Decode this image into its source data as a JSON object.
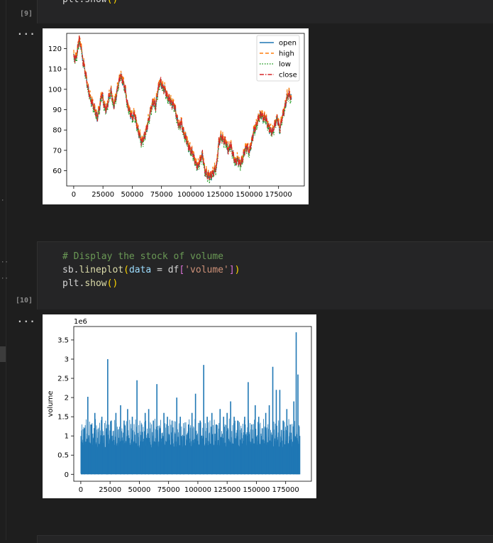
{
  "cells": [
    {
      "execution_count": "[9]",
      "code_lines": [
        [
          {
            "t": "plt.show",
            "c": "c-plain"
          },
          {
            "t": "()",
            "c": "c-paren"
          }
        ]
      ]
    },
    {
      "execution_count": "[10]",
      "code_lines": [
        [
          {
            "t": "# Display the stock of volume",
            "c": "c-comment"
          }
        ],
        [
          {
            "t": "sb.",
            "c": "c-plain"
          },
          {
            "t": "lineplot",
            "c": "c-func"
          },
          {
            "t": "(",
            "c": "c-paren"
          },
          {
            "t": "data",
            "c": "c-param"
          },
          {
            "t": " = df",
            "c": "c-plain"
          },
          {
            "t": "[",
            "c": "c-bracket"
          },
          {
            "t": "'volume'",
            "c": "c-string"
          },
          {
            "t": "]",
            "c": "c-bracket"
          },
          {
            "t": ")",
            "c": "c-paren"
          }
        ],
        [
          {
            "t": "plt.",
            "c": "c-plain"
          },
          {
            "t": "show",
            "c": "c-func"
          },
          {
            "t": "()",
            "c": "c-paren"
          }
        ]
      ]
    }
  ],
  "output_menu_label": "...",
  "chart_data": [
    {
      "type": "line",
      "x_ticks": [
        0,
        25000,
        50000,
        75000,
        100000,
        125000,
        150000,
        175000
      ],
      "y_ticks": [
        60,
        70,
        80,
        90,
        100,
        110,
        120
      ],
      "xlim": [
        -6000,
        197000
      ],
      "ylim": [
        52.5,
        127.5
      ],
      "x": [
        0,
        2000,
        4000,
        5000,
        8000,
        10000,
        12000,
        14000,
        16000,
        18000,
        20000,
        22000,
        24000,
        26000,
        28000,
        30000,
        32000,
        34000,
        36000,
        38000,
        40000,
        42000,
        44000,
        46000,
        48000,
        50000,
        52000,
        54000,
        56000,
        58000,
        60000,
        62000,
        64000,
        66000,
        68000,
        70000,
        72000,
        74000,
        76000,
        78000,
        80000,
        82000,
        84000,
        86000,
        88000,
        90000,
        92000,
        94000,
        96000,
        98000,
        100000,
        102000,
        104000,
        106000,
        108000,
        110000,
        112000,
        114000,
        116000,
        118000,
        120000,
        122000,
        124000,
        126000,
        128000,
        130000,
        132000,
        134000,
        136000,
        138000,
        140000,
        142000,
        144000,
        146000,
        148000,
        150000,
        152000,
        154000,
        156000,
        158000,
        160000,
        162000,
        164000,
        166000,
        168000,
        170000,
        172000,
        174000,
        176000,
        178000,
        180000,
        182000,
        184000,
        186000
      ],
      "series": [
        {
          "name": "open",
          "color": "#1f77b4",
          "values": [
            116,
            115,
            122,
            125,
            114,
            108,
            101,
            96,
            93,
            90,
            86,
            91,
            98,
            92,
            90,
            96,
            99,
            92,
            96,
            102,
            107,
            104,
            100,
            92,
            89,
            86,
            88,
            82,
            78,
            74,
            76,
            80,
            85,
            90,
            94,
            92,
            100,
            104,
            101,
            100,
            96,
            95,
            93,
            92,
            86,
            82,
            84,
            78,
            76,
            72,
            70,
            68,
            64,
            62,
            65,
            68,
            60,
            58,
            57,
            58,
            60,
            62,
            74,
            77,
            75,
            74,
            70,
            73,
            68,
            64,
            66,
            63,
            65,
            70,
            72,
            69,
            74,
            80,
            82,
            86,
            88,
            86,
            86,
            82,
            80,
            79,
            83,
            86,
            80,
            86,
            90,
            96,
            98,
            95
          ]
        },
        {
          "name": "high",
          "color": "#ff7f0e",
          "values": [
            117,
            116,
            123,
            126,
            115,
            109,
            102,
            97,
            94,
            91,
            87,
            92,
            99,
            93,
            91,
            97,
            100,
            93,
            97,
            103,
            108,
            105,
            101,
            93,
            90,
            87,
            89,
            83,
            79,
            75,
            77,
            81,
            86,
            91,
            95,
            93,
            101,
            105,
            102,
            101,
            97,
            96,
            94,
            93,
            87,
            83,
            85,
            79,
            77,
            73,
            71,
            69,
            65,
            63,
            66,
            69,
            61,
            59,
            58,
            59,
            61,
            63,
            75,
            78,
            76,
            75,
            71,
            74,
            69,
            65,
            67,
            64,
            66,
            71,
            73,
            70,
            75,
            81,
            83,
            87,
            89,
            87,
            87,
            83,
            81,
            80,
            84,
            87,
            81,
            87,
            91,
            97,
            99,
            96
          ]
        },
        {
          "name": "low",
          "color": "#2ca02c",
          "values": [
            115,
            114,
            121,
            124,
            113,
            107,
            100,
            95,
            92,
            89,
            85,
            90,
            97,
            91,
            89,
            95,
            98,
            91,
            95,
            101,
            106,
            103,
            99,
            91,
            88,
            85,
            87,
            81,
            77,
            73,
            75,
            79,
            84,
            89,
            93,
            90,
            99,
            103,
            100,
            99,
            95,
            94,
            92,
            91,
            85,
            81,
            83,
            77,
            75,
            71,
            69,
            67,
            63,
            61,
            64,
            67,
            59,
            57,
            56,
            57,
            59,
            61,
            73,
            76,
            74,
            73,
            69,
            72,
            67,
            63,
            65,
            62,
            64,
            69,
            71,
            68,
            73,
            79,
            81,
            85,
            87,
            85,
            85,
            81,
            79,
            78,
            82,
            85,
            79,
            85,
            89,
            95,
            97,
            94
          ]
        },
        {
          "name": "close",
          "color": "#d62728",
          "values": [
            116,
            115,
            122,
            125,
            114,
            108,
            101,
            96,
            93,
            90,
            86,
            91,
            98,
            92,
            90,
            96,
            99,
            92,
            96,
            102,
            107,
            104,
            100,
            92,
            89,
            86,
            88,
            82,
            78,
            74,
            76,
            80,
            85,
            90,
            94,
            92,
            100,
            104,
            101,
            100,
            96,
            95,
            93,
            92,
            86,
            82,
            84,
            78,
            76,
            72,
            70,
            68,
            64,
            62,
            65,
            68,
            60,
            58,
            57,
            58,
            60,
            62,
            74,
            77,
            75,
            74,
            70,
            73,
            68,
            64,
            66,
            63,
            65,
            70,
            72,
            69,
            74,
            80,
            82,
            86,
            88,
            86,
            86,
            82,
            80,
            79,
            83,
            86,
            80,
            86,
            90,
            96,
            98,
            95
          ]
        }
      ],
      "legend_placement": "upper-right"
    },
    {
      "type": "line",
      "ylabel": "volume",
      "offset_label": "1e6",
      "x_ticks": [
        0,
        25000,
        50000,
        75000,
        100000,
        125000,
        150000,
        175000
      ],
      "y_ticks": [
        0.0,
        0.5,
        1.0,
        1.5,
        2.0,
        2.5,
        3.0,
        3.5
      ],
      "xlim": [
        -6000,
        197000
      ],
      "ylim": [
        -0.18,
        3.85
      ],
      "color": "#1f77b4",
      "spikes": [
        [
          1000,
          0.9
        ],
        [
          3000,
          1.2
        ],
        [
          6000,
          2.02
        ],
        [
          9000,
          1.3
        ],
        [
          12000,
          1.6
        ],
        [
          15000,
          1.1
        ],
        [
          18000,
          1.5
        ],
        [
          22000,
          1.2
        ],
        [
          23000,
          3.0
        ],
        [
          26000,
          1.4
        ],
        [
          30000,
          1.6
        ],
        [
          34000,
          1.8
        ],
        [
          37000,
          1.4
        ],
        [
          40000,
          1.7
        ],
        [
          44000,
          1.5
        ],
        [
          48000,
          2.45
        ],
        [
          52000,
          1.3
        ],
        [
          55000,
          1.6
        ],
        [
          58000,
          1.7
        ],
        [
          62000,
          1.4
        ],
        [
          65000,
          2.35
        ],
        [
          68000,
          1.2
        ],
        [
          71000,
          1.6
        ],
        [
          74000,
          1.5
        ],
        [
          78000,
          1.4
        ],
        [
          82000,
          2.0
        ],
        [
          85000,
          1.5
        ],
        [
          88000,
          1.0
        ],
        [
          92000,
          1.3
        ],
        [
          95000,
          1.6
        ],
        [
          98000,
          2.1
        ],
        [
          102000,
          1.4
        ],
        [
          105000,
          2.85
        ],
        [
          108000,
          1.5
        ],
        [
          112000,
          1.6
        ],
        [
          116000,
          1.3
        ],
        [
          119000,
          1.7
        ],
        [
          122000,
          1.5
        ],
        [
          125000,
          1.6
        ],
        [
          128000,
          1.9
        ],
        [
          131000,
          1.5
        ],
        [
          134000,
          1.4
        ],
        [
          137000,
          1.2
        ],
        [
          140000,
          1.5
        ],
        [
          143000,
          2.4
        ],
        [
          146000,
          1.3
        ],
        [
          149000,
          1.8
        ],
        [
          152000,
          1.5
        ],
        [
          155000,
          1.2
        ],
        [
          158000,
          1.6
        ],
        [
          161000,
          1.8
        ],
        [
          164000,
          2.8
        ],
        [
          167000,
          2.2
        ],
        [
          170000,
          2.2
        ],
        [
          173000,
          1.4
        ],
        [
          176000,
          1.7
        ],
        [
          179000,
          1.3
        ],
        [
          182000,
          1.9
        ],
        [
          184000,
          3.7
        ],
        [
          185500,
          2.6
        ],
        [
          187000,
          1.0
        ]
      ]
    }
  ]
}
